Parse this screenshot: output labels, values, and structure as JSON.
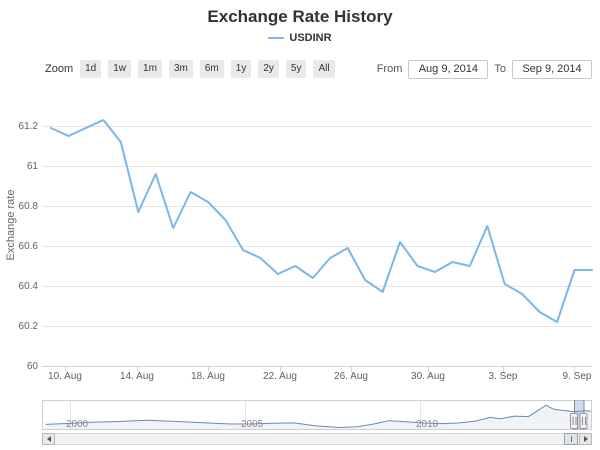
{
  "header": {
    "title": "Exchange Rate History"
  },
  "legend": {
    "items": [
      {
        "label": "USDINR",
        "color": "#7cb5ec"
      }
    ]
  },
  "range_selector": {
    "zoom_label": "Zoom",
    "buttons": [
      "1d",
      "1w",
      "1m",
      "3m",
      "6m",
      "1y",
      "2y",
      "5y",
      "All"
    ],
    "from_label": "From",
    "from_value": "Aug 9, 2014",
    "to_label": "To",
    "to_value": "Sep 9, 2014"
  },
  "colors": {
    "series_line": "#7cb5ec",
    "gridline": "#e6e6e6",
    "axis_line": "#ccd6eb",
    "navigator_line": "#6d8cae",
    "navigator_fill": "rgba(120,150,190,0.12)",
    "navigator_mask": "rgba(102,133,194,0.3)",
    "title_text": "#333333",
    "axis_label_text": "#606060"
  },
  "chart_data": {
    "type": "line",
    "title": "Exchange Rate History",
    "xlabel": "",
    "ylabel": "Exchange rate",
    "ylim": [
      60,
      61.2
    ],
    "grid": true,
    "legend_position": "top",
    "yticks": [
      "61.2",
      "61",
      "60.8",
      "60.6",
      "60.4",
      "60.2",
      "60"
    ],
    "xticks": [
      "10. Aug",
      "14. Aug",
      "18. Aug",
      "22. Aug",
      "26. Aug",
      "30. Aug",
      "3. Sep",
      "9. Sep"
    ],
    "series": [
      {
        "name": "USDINR",
        "color": "#7cb5ec",
        "points": [
          {
            "date": "Aug 9, 2014",
            "value": 61.19
          },
          {
            "date": "Aug 10, 2014",
            "value": 61.15
          },
          {
            "date": "Aug 11, 2014",
            "value": 61.19
          },
          {
            "date": "Aug 12, 2014",
            "value": 61.23
          },
          {
            "date": "Aug 13, 2014",
            "value": 61.12
          },
          {
            "date": "Aug 14, 2014",
            "value": 60.77
          },
          {
            "date": "Aug 15, 2014",
            "value": 60.96
          },
          {
            "date": "Aug 16, 2014",
            "value": 60.69
          },
          {
            "date": "Aug 17, 2014",
            "value": 60.87
          },
          {
            "date": "Aug 18, 2014",
            "value": 60.82
          },
          {
            "date": "Aug 19, 2014",
            "value": 60.73
          },
          {
            "date": "Aug 20, 2014",
            "value": 60.58
          },
          {
            "date": "Aug 21, 2014",
            "value": 60.54
          },
          {
            "date": "Aug 22, 2014",
            "value": 60.46
          },
          {
            "date": "Aug 23, 2014",
            "value": 60.5
          },
          {
            "date": "Aug 24, 2014",
            "value": 60.44
          },
          {
            "date": "Aug 25, 2014",
            "value": 60.54
          },
          {
            "date": "Aug 26, 2014",
            "value": 60.59
          },
          {
            "date": "Aug 27, 2014",
            "value": 60.43
          },
          {
            "date": "Aug 28, 2014",
            "value": 60.37
          },
          {
            "date": "Aug 29, 2014",
            "value": 60.62
          },
          {
            "date": "Aug 30, 2014",
            "value": 60.5
          },
          {
            "date": "Aug 31, 2014",
            "value": 60.47
          },
          {
            "date": "Sep 1, 2014",
            "value": 60.52
          },
          {
            "date": "Sep 2, 2014",
            "value": 60.5
          },
          {
            "date": "Sep 3, 2014",
            "value": 60.7
          },
          {
            "date": "Sep 4, 2014",
            "value": 60.41
          },
          {
            "date": "Sep 5, 2014",
            "value": 60.36
          },
          {
            "date": "Sep 6, 2014",
            "value": 60.27
          },
          {
            "date": "Sep 7, 2014",
            "value": 60.22
          },
          {
            "date": "Sep 8, 2014",
            "value": 60.48
          },
          {
            "date": "Sep 9, 2014",
            "value": 60.48
          }
        ]
      }
    ],
    "navigator": {
      "xticks": [
        "2000",
        "2005",
        "2010"
      ],
      "points": [
        {
          "year": 1999.3,
          "value": 43.3
        },
        {
          "year": 2000.0,
          "value": 44.6
        },
        {
          "year": 2000.7,
          "value": 46.3
        },
        {
          "year": 2001.4,
          "value": 47.1
        },
        {
          "year": 2002.2,
          "value": 48.8
        },
        {
          "year": 2003.0,
          "value": 47.3
        },
        {
          "year": 2003.8,
          "value": 45.6
        },
        {
          "year": 2004.6,
          "value": 43.8
        },
        {
          "year": 2005.2,
          "value": 44.0
        },
        {
          "year": 2005.8,
          "value": 44.8
        },
        {
          "year": 2006.4,
          "value": 45.3
        },
        {
          "year": 2007.0,
          "value": 41.5
        },
        {
          "year": 2007.7,
          "value": 39.3
        },
        {
          "year": 2008.2,
          "value": 40.2
        },
        {
          "year": 2008.7,
          "value": 44.0
        },
        {
          "year": 2009.1,
          "value": 48.2
        },
        {
          "year": 2009.6,
          "value": 46.8
        },
        {
          "year": 2010.1,
          "value": 45.2
        },
        {
          "year": 2010.6,
          "value": 44.4
        },
        {
          "year": 2011.1,
          "value": 45.1
        },
        {
          "year": 2011.6,
          "value": 47.8
        },
        {
          "year": 2012.0,
          "value": 52.5
        },
        {
          "year": 2012.3,
          "value": 50.8
        },
        {
          "year": 2012.7,
          "value": 54.2
        },
        {
          "year": 2013.1,
          "value": 53.5
        },
        {
          "year": 2013.6,
          "value": 68.4
        },
        {
          "year": 2013.8,
          "value": 63.5
        },
        {
          "year": 2014.1,
          "value": 61.5
        },
        {
          "year": 2014.4,
          "value": 60.0
        },
        {
          "year": 2014.7,
          "value": 61.2
        },
        {
          "year": 2014.9,
          "value": 60.6
        }
      ]
    }
  }
}
